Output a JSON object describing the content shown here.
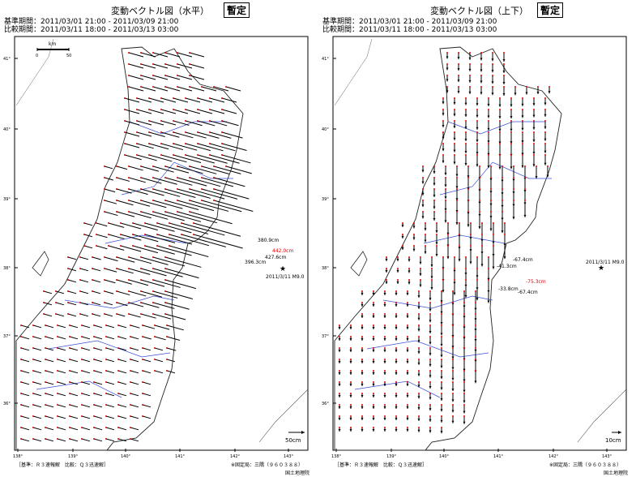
{
  "left": {
    "title": "変動ベクトル図（水平）",
    "stamp": "暫定",
    "period_base": "基準期間：2011/03/01 21:00 - 2011/03/09 21:00",
    "period_compare": "比較期間：2011/03/11 18:00 - 2011/03/13 03:00",
    "scale_unit": "km",
    "scale_0": "0",
    "scale_50": "50",
    "vector_scale": "50cm",
    "epicenter": "2011/3/11 M9.0",
    "labels": [
      "442.0cm",
      "380.9cm",
      "427.6cm",
      "396.3cm"
    ],
    "footer_left": "［基準：Ｒ３速報解　比較：Ｑ３迅速解］",
    "footer_right": "※固定局：三隅（９６０３８８）",
    "org": "国土地理院"
  },
  "right": {
    "title": "変動ベクトル図（上下）",
    "stamp": "暫定",
    "period_base": "基準期間：2011/03/01 21:00 - 2011/03/09 21:00",
    "period_compare": "比較期間：2011/03/11 18:00 - 2011/03/13 03:00",
    "vector_scale": "10cm",
    "epicenter": "2011/3/11 M9.0",
    "labels": [
      "-41.3cm",
      "-67.4cm",
      "-75.3cm",
      "-33.8cm",
      "-67.4cm"
    ],
    "footer_left": "［基準：Ｒ３速報解　比較：Ｑ３迅速解］",
    "footer_right": "※固定局：三隅（９６０３８８）",
    "org": "国土地理院"
  },
  "axes": {
    "lon_ticks": [
      "138°",
      "139°",
      "140°",
      "141°",
      "142°",
      "143°"
    ],
    "lat_ticks": [
      "41°",
      "40°",
      "39°",
      "38°",
      "37°",
      "36°"
    ]
  },
  "colors": {
    "coast": "#222222",
    "pref_border": "#3b4fd6",
    "highlight": "#e00000",
    "vector": "#000000"
  }
}
